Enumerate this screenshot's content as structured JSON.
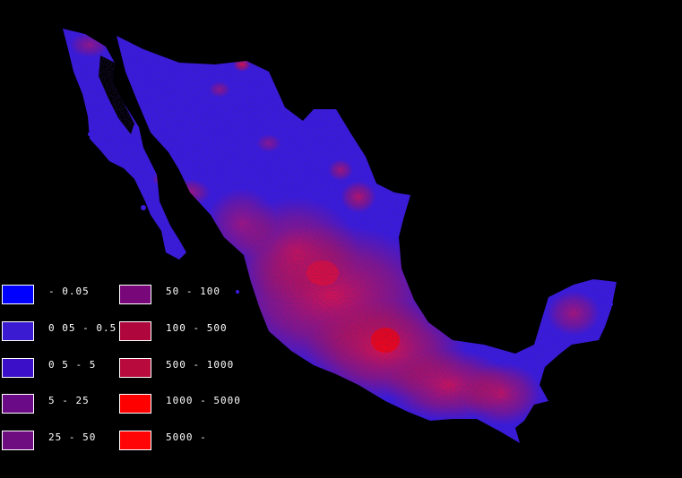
{
  "map": {
    "region": "Mexico",
    "background_color": "#000000",
    "base_color": "#3a1be0",
    "hotspot_color": "#e0102a"
  },
  "legend": {
    "items": [
      {
        "label": "- 0.05",
        "color": "#0000ff"
      },
      {
        "label": "0 05 - 0.5",
        "color": "#3a1bd2"
      },
      {
        "label": "0 5 - 5",
        "color": "#3b0fc8"
      },
      {
        "label": "5 - 25",
        "color": "#6a0a86"
      },
      {
        "label": "25 - 50",
        "color": "#6e0d80"
      },
      {
        "label": "50 - 100",
        "color": "#78087a"
      },
      {
        "label": "100 - 500",
        "color": "#b0063e"
      },
      {
        "label": "500 - 1000",
        "color": "#b80a3c"
      },
      {
        "label": "1000 - 5000",
        "color": "#ff0000"
      },
      {
        "label": "5000 -",
        "color": "#ff0505"
      }
    ]
  }
}
